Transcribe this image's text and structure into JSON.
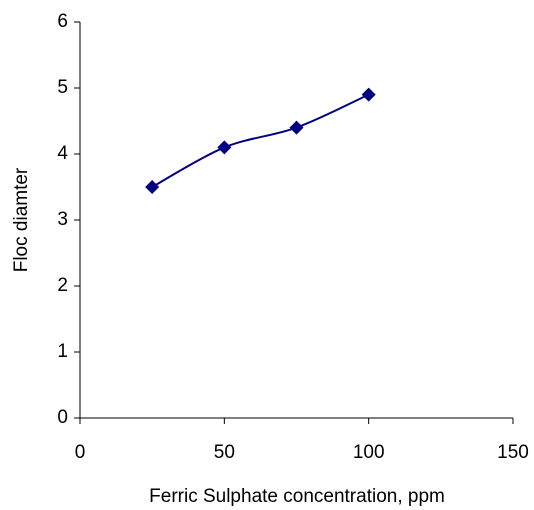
{
  "chart_data": {
    "type": "line",
    "smooth": true,
    "marker": "diamond",
    "x_label": "Ferric Sulphate concentration, ppm",
    "y_label": "Floc diamter",
    "x": [
      25,
      50,
      75,
      100
    ],
    "series": [
      {
        "color": "#000080",
        "values": [
          3.5,
          4.1,
          4.4,
          4.9
        ]
      }
    ],
    "xlim": [
      0,
      150
    ],
    "xticks": [
      0,
      50,
      100,
      150
    ],
    "ylim": [
      0,
      6
    ],
    "yticks": [
      0,
      1,
      2,
      3,
      4,
      5,
      6
    ],
    "grid": false
  }
}
